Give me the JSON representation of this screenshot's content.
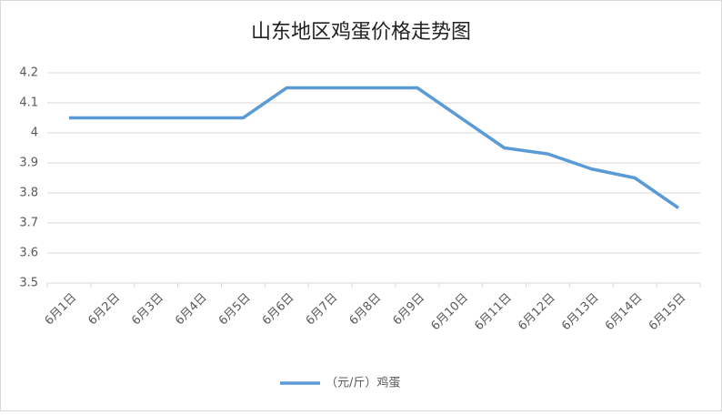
{
  "chart_data": {
    "type": "line",
    "title": "山东地区鸡蛋价格走势图",
    "categories": [
      "6月1日",
      "6月2日",
      "6月3日",
      "6月4日",
      "6月5日",
      "6月6日",
      "6月7日",
      "6月8日",
      "6月9日",
      "6月10日",
      "6月11日",
      "6月12日",
      "6月13日",
      "6月14日",
      "6月15日"
    ],
    "series": [
      {
        "name": "（元/斤）鸡蛋",
        "color": "#5b9bd5",
        "values": [
          4.05,
          4.05,
          4.05,
          4.05,
          4.05,
          4.15,
          4.15,
          4.15,
          4.15,
          4.05,
          3.95,
          3.93,
          3.88,
          3.85,
          3.75
        ]
      }
    ],
    "ylim": [
      3.5,
      4.2
    ],
    "yticks": [
      3.5,
      3.6,
      3.7,
      3.8,
      3.9,
      4,
      4.1,
      4.2
    ],
    "grid": true,
    "legend": "bottom"
  }
}
